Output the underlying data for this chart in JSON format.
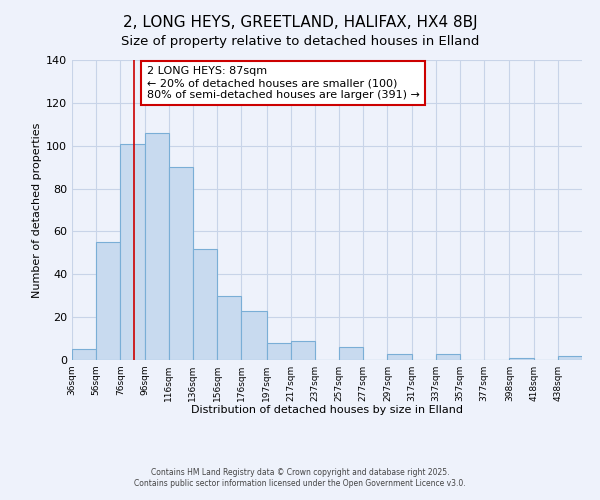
{
  "title": "2, LONG HEYS, GREETLAND, HALIFAX, HX4 8BJ",
  "subtitle": "Size of property relative to detached houses in Elland",
  "xlabel": "Distribution of detached houses by size in Elland",
  "ylabel": "Number of detached properties",
  "bar_color": "#c8daef",
  "bar_edge_color": "#7aaed6",
  "background_color": "#eef2fb",
  "bin_labels": [
    "36sqm",
    "56sqm",
    "76sqm",
    "96sqm",
    "116sqm",
    "136sqm",
    "156sqm",
    "176sqm",
    "197sqm",
    "217sqm",
    "237sqm",
    "257sqm",
    "277sqm",
    "297sqm",
    "317sqm",
    "337sqm",
    "357sqm",
    "377sqm",
    "398sqm",
    "418sqm",
    "438sqm"
  ],
  "bar_heights": [
    5,
    55,
    101,
    106,
    90,
    52,
    30,
    23,
    8,
    9,
    0,
    6,
    0,
    3,
    0,
    3,
    0,
    0,
    1,
    0,
    2
  ],
  "bin_edges_numeric": [
    36,
    56,
    76,
    96,
    116,
    136,
    156,
    176,
    197,
    217,
    237,
    257,
    277,
    297,
    317,
    337,
    357,
    377,
    398,
    418,
    438,
    458
  ],
  "red_line_x": 87,
  "red_line_color": "#cc0000",
  "annotation_text": "2 LONG HEYS: 87sqm\n← 20% of detached houses are smaller (100)\n80% of semi-detached houses are larger (391) →",
  "annotation_box_color": "#ffffff",
  "annotation_box_edge_color": "#cc0000",
  "ylim": [
    0,
    140
  ],
  "yticks": [
    0,
    20,
    40,
    60,
    80,
    100,
    120,
    140
  ],
  "footer_line1": "Contains HM Land Registry data © Crown copyright and database right 2025.",
  "footer_line2": "Contains public sector information licensed under the Open Government Licence v3.0.",
  "grid_color": "#c8d4e8",
  "title_fontsize": 11,
  "subtitle_fontsize": 9.5,
  "annotation_fontsize": 8,
  "ylabel_fontsize": 8,
  "xlabel_fontsize": 8
}
